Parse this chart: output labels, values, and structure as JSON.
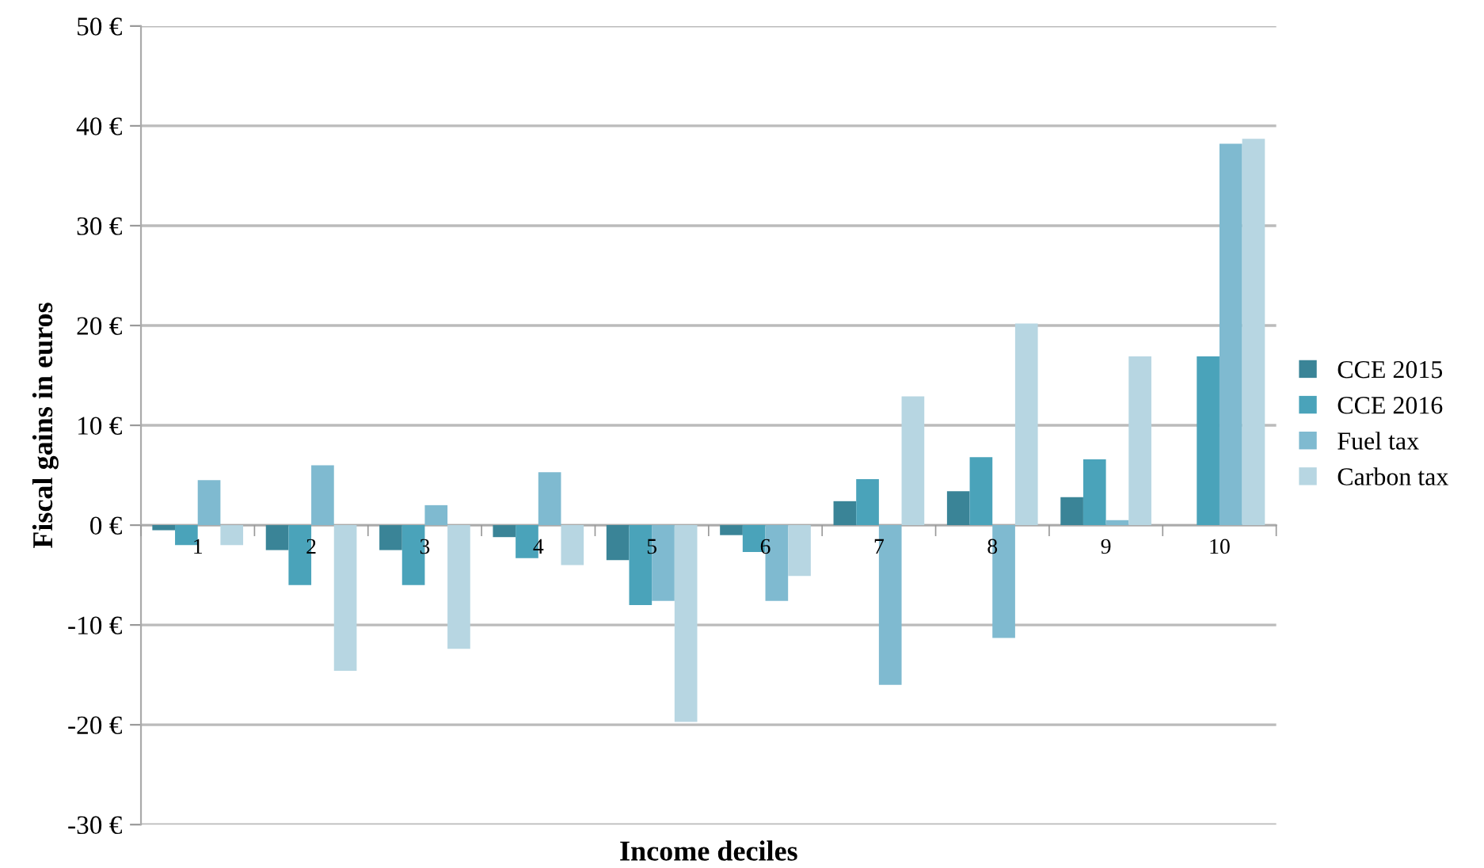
{
  "chart_data": {
    "type": "bar",
    "xlabel": "Income deciles",
    "ylabel": "Fiscal gains in euros",
    "categories": [
      "1",
      "2",
      "3",
      "4",
      "5",
      "6",
      "7",
      "8",
      "9",
      "10"
    ],
    "series": [
      {
        "name": "CCE 2015",
        "color": "#3a8497",
        "values": [
          -0.5,
          -2.5,
          -2.5,
          -1.2,
          -3.5,
          -1,
          2.4,
          3.4,
          2.8,
          null
        ]
      },
      {
        "name": "CCE 2016",
        "color": "#4aa3ba",
        "values": [
          -2,
          -6,
          -6,
          -3.3,
          -8,
          -2.7,
          4.6,
          6.8,
          6.6,
          16.9
        ]
      },
      {
        "name": "Fuel tax",
        "color": "#7fbad0",
        "values": [
          4.5,
          6,
          2,
          5.3,
          -7.6,
          -7.6,
          -16,
          -11.3,
          0.5,
          38.2
        ]
      },
      {
        "name": "Carbon tax",
        "color": "#b7d6e2",
        "values": [
          -2,
          -14.6,
          -12.4,
          -4,
          -19.7,
          -5.1,
          12.9,
          20.2,
          16.9,
          38.7
        ]
      }
    ],
    "ylim": [
      -30,
      50
    ],
    "yticks": [
      {
        "value": -30,
        "label": "-30 €"
      },
      {
        "value": -20,
        "label": "-20 €"
      },
      {
        "value": -10,
        "label": "-10 €"
      },
      {
        "value": 0,
        "label": "0 €"
      },
      {
        "value": 10,
        "label": "10 €"
      },
      {
        "value": 20,
        "label": "20 €"
      },
      {
        "value": 30,
        "label": "30 €"
      },
      {
        "value": 40,
        "label": "40 €"
      },
      {
        "value": 50,
        "label": "50 €"
      }
    ],
    "grid": "y",
    "legend": "right"
  }
}
